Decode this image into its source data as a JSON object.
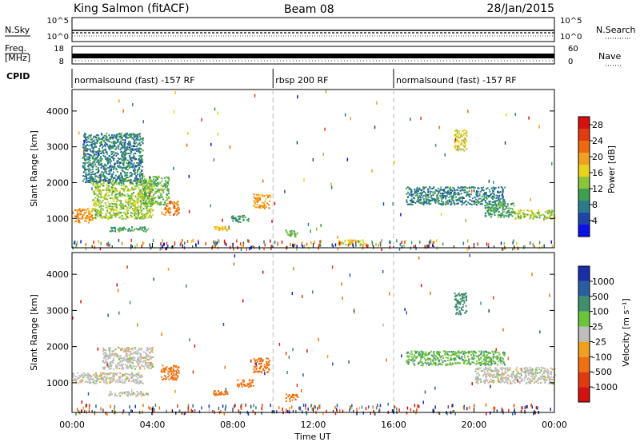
{
  "header": {
    "station": "King Salmon (fitACF)",
    "beam": "Beam 08",
    "date": "28/Jan/2015"
  },
  "top_panels": {
    "nsky_label": "N.Sky",
    "nsky_ticks": [
      "10^5",
      "10^0"
    ],
    "nsearch_label": "N.Search",
    "nsearch_ticks": [
      "10^5",
      "10^0"
    ],
    "freq_label_line1": "Freq.",
    "freq_label_line2": "[MHz]",
    "freq_ticks": [
      "18",
      "8"
    ],
    "nave_label": "Nave",
    "nave_ticks": [
      "60",
      "0"
    ],
    "cpid_label": "CPID",
    "cpid_segments": [
      {
        "label": "normalsound (fast) -157 RF",
        "start_hr": 0,
        "end_hr": 10
      },
      {
        "label": "rbsp 200 RF",
        "start_hr": 10,
        "end_hr": 16
      },
      {
        "label": "normalsound (fast) -157 RF",
        "start_hr": 16,
        "end_hr": 24
      }
    ]
  },
  "axes": {
    "ylabel": "Slant Range [km]",
    "xlabel": "Time UT",
    "yticks": [
      "1000",
      "2000",
      "3000",
      "4000"
    ],
    "xticks": [
      "00:00",
      "04:00",
      "08:00",
      "12:00",
      "16:00",
      "20:00",
      "00:00"
    ]
  },
  "colorbars": {
    "power": {
      "label": "Power [dB]",
      "ticks": [
        "4",
        "8",
        "12",
        "16",
        "20",
        "24",
        "28"
      ],
      "colors": [
        "#0a10e6",
        "#1f44a8",
        "#2b7a8c",
        "#3e9e50",
        "#8cc43a",
        "#e8d21e",
        "#f0a020",
        "#ee6a10",
        "#e23a10",
        "#d41010"
      ]
    },
    "velocity": {
      "label": "Velocity [m s⁻¹]",
      "ticks": [
        "1000",
        "500",
        "100",
        "25",
        "-25",
        "-100",
        "-500",
        "-1000"
      ],
      "colors": [
        "#1a2ea8",
        "#2a5ea0",
        "#3f8e6c",
        "#6cc43a",
        "#bebebe",
        "#f0a020",
        "#ee7010",
        "#e03a10",
        "#d41010"
      ]
    }
  },
  "chart_data": [
    {
      "type": "heatmap",
      "title": "Power",
      "xlabel": "Time UT",
      "ylabel": "Slant Range [km]",
      "xlim": [
        0,
        24
      ],
      "ylim": [
        180,
        4600
      ],
      "colorbar_label": "Power [dB]",
      "clim": [
        0,
        30
      ],
      "regions": [
        {
          "t0": 0.0,
          "t1": 1.0,
          "r0": 900,
          "r1": 1300,
          "value": 20
        },
        {
          "t0": 1.0,
          "t1": 4.0,
          "r0": 1000,
          "r1": 2100,
          "value": 14
        },
        {
          "t0": 0.5,
          "t1": 3.5,
          "r0": 2000,
          "r1": 3400,
          "value": 8
        },
        {
          "t0": 3.5,
          "t1": 4.8,
          "r0": 1400,
          "r1": 2200,
          "value": 12
        },
        {
          "t0": 4.5,
          "t1": 5.3,
          "r0": 1100,
          "r1": 1500,
          "value": 22
        },
        {
          "t0": 1.8,
          "t1": 3.8,
          "r0": 650,
          "r1": 780,
          "value": 10
        },
        {
          "t0": 7.0,
          "t1": 7.8,
          "r0": 680,
          "r1": 800,
          "value": 18
        },
        {
          "t0": 7.9,
          "t1": 8.8,
          "r0": 900,
          "r1": 1100,
          "value": 10
        },
        {
          "t0": 9.0,
          "t1": 9.8,
          "r0": 1300,
          "r1": 1700,
          "value": 20
        },
        {
          "t0": 10.6,
          "t1": 11.2,
          "r0": 500,
          "r1": 700,
          "value": 12
        },
        {
          "t0": 13.2,
          "t1": 14.5,
          "r0": 280,
          "r1": 420,
          "value": 16
        },
        {
          "t0": 16.6,
          "t1": 21.5,
          "r0": 1400,
          "r1": 1900,
          "value": 8
        },
        {
          "t0": 19.0,
          "t1": 19.6,
          "r0": 2900,
          "r1": 3500,
          "value": 16
        },
        {
          "t0": 20.5,
          "t1": 22.0,
          "r0": 1050,
          "r1": 1450,
          "value": 10
        },
        {
          "t0": 22.0,
          "t1": 24.0,
          "r0": 1000,
          "r1": 1250,
          "value": 14
        }
      ]
    },
    {
      "type": "heatmap",
      "title": "Velocity",
      "xlabel": "Time UT",
      "ylabel": "Slant Range [km]",
      "xlim": [
        0,
        24
      ],
      "ylim": [
        180,
        4600
      ],
      "colorbar_label": "Velocity [m s⁻¹]",
      "clim": [
        -1000,
        1000
      ],
      "regions": [
        {
          "t0": 0.0,
          "t1": 3.5,
          "r0": 1000,
          "r1": 1300,
          "value": 0
        },
        {
          "t0": 1.5,
          "t1": 4.0,
          "r0": 1400,
          "r1": 2000,
          "value": 0
        },
        {
          "t0": 4.4,
          "t1": 5.3,
          "r0": 1100,
          "r1": 1500,
          "value": -300
        },
        {
          "t0": 1.8,
          "t1": 3.8,
          "r0": 650,
          "r1": 780,
          "value": 0
        },
        {
          "t0": 7.0,
          "t1": 7.8,
          "r0": 680,
          "r1": 800,
          "value": -300
        },
        {
          "t0": 8.2,
          "t1": 9.0,
          "r0": 900,
          "r1": 1100,
          "value": -300
        },
        {
          "t0": 9.0,
          "t1": 9.8,
          "r0": 1300,
          "r1": 1700,
          "value": -300
        },
        {
          "t0": 10.6,
          "t1": 11.2,
          "r0": 500,
          "r1": 700,
          "value": -200
        },
        {
          "t0": 16.6,
          "t1": 21.5,
          "r0": 1500,
          "r1": 1900,
          "value": 50
        },
        {
          "t0": 20.0,
          "t1": 24.0,
          "r0": 1000,
          "r1": 1450,
          "value": 0
        },
        {
          "t0": 19.0,
          "t1": 19.6,
          "r0": 2900,
          "r1": 3500,
          "value": 150
        }
      ]
    }
  ]
}
